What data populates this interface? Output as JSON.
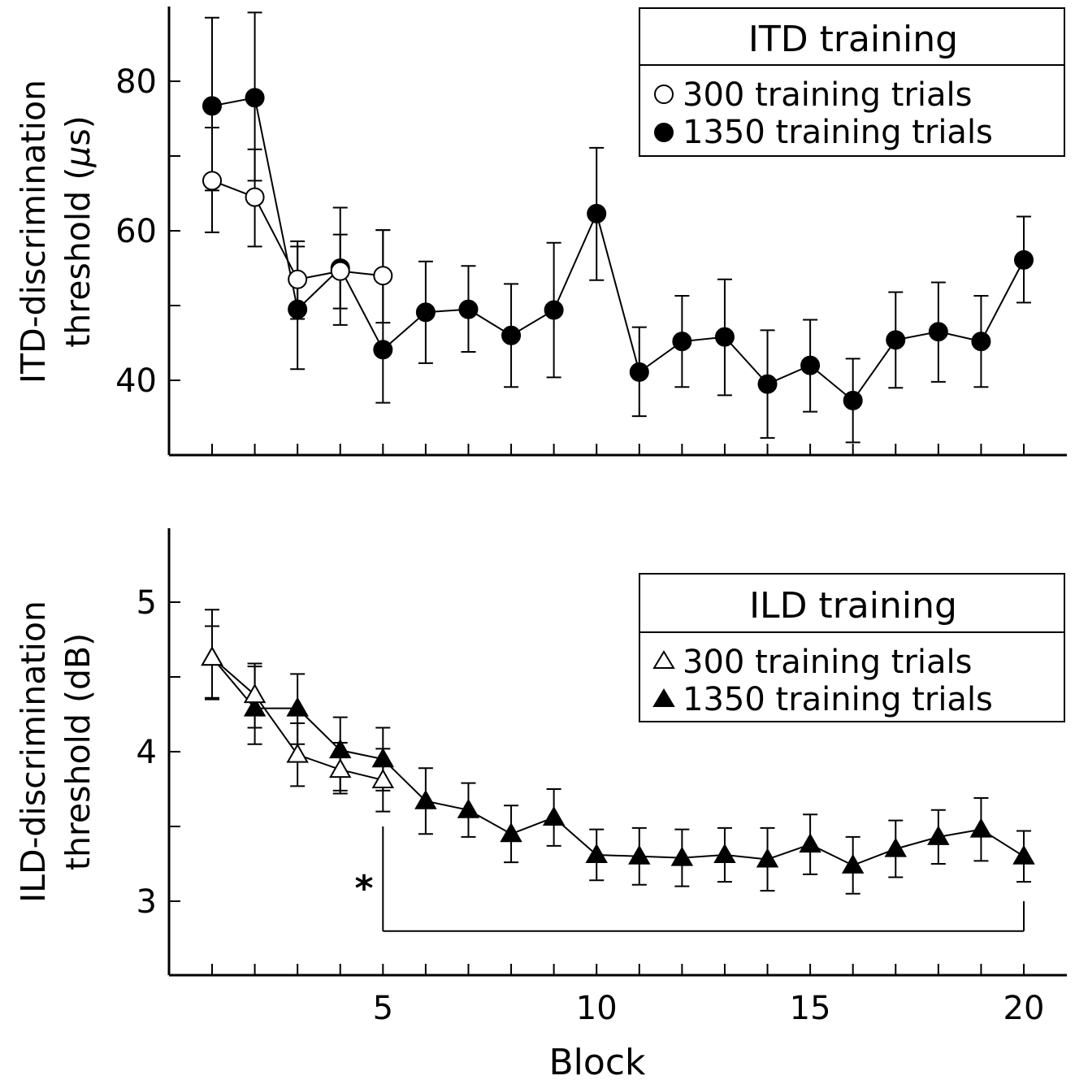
{
  "chart_data": [
    {
      "type": "line",
      "ylabel_line1": "ITD-discrimination",
      "ylabel_line2": "threshold (",
      "ylabel_mu": "μ",
      "ylabel_end": "s)",
      "xlabel": "",
      "ylim": [
        30,
        90
      ],
      "xlim": [
        0,
        21
      ],
      "yticks": [
        40,
        50,
        60,
        70,
        80
      ],
      "yticklabels": [
        "40",
        "",
        "60",
        "",
        "80"
      ],
      "grid": false,
      "legend": {
        "title": "ITD training",
        "placement": "top-right",
        "entries": [
          {
            "marker": "open-circle",
            "label": "300 training trials"
          },
          {
            "marker": "filled-circle",
            "label": "1350 training trials"
          }
        ]
      },
      "series": [
        {
          "name": "300 training trials",
          "marker": "open-circle",
          "x": [
            1,
            2,
            3,
            4,
            5
          ],
          "y": [
            66.7,
            64.5,
            53.5,
            54.6,
            54.0
          ],
          "err_low": [
            59.8,
            57.9,
            48.2,
            47.4,
            47.7
          ],
          "err_high": [
            73.8,
            70.9,
            57.9,
            59.5,
            60.1
          ]
        },
        {
          "name": "1350 training trials",
          "marker": "filled-circle",
          "x": [
            1,
            2,
            3,
            4,
            5,
            6,
            7,
            8,
            9,
            10,
            11,
            12,
            13,
            14,
            15,
            16,
            17,
            18,
            19,
            20
          ],
          "y": [
            76.7,
            77.8,
            49.5,
            55.0,
            44.1,
            49.1,
            49.5,
            46.0,
            49.4,
            62.3,
            41.1,
            45.2,
            45.8,
            39.5,
            42.0,
            37.3,
            45.4,
            46.5,
            45.2,
            56.1
          ],
          "err_low": [
            65.4,
            66.7,
            41.5,
            49.6,
            37.0,
            42.3,
            43.8,
            39.1,
            40.4,
            53.4,
            35.2,
            39.1,
            38.0,
            32.3,
            35.8,
            31.7,
            39.0,
            39.8,
            39.1,
            50.4
          ],
          "err_high": [
            88.5,
            89.2,
            58.6,
            63.1,
            60.1,
            55.9,
            55.3,
            52.9,
            58.4,
            71.1,
            47.1,
            51.3,
            53.5,
            46.7,
            48.1,
            42.9,
            51.8,
            53.1,
            51.3,
            61.9
          ]
        }
      ]
    },
    {
      "type": "line",
      "ylabel_line1": "ILD-discrimination",
      "ylabel_line2": "threshold (dB)",
      "xlabel": "Block",
      "ylim": [
        2.5,
        5.5
      ],
      "xlim": [
        0,
        21
      ],
      "yticks": [
        3,
        3.5,
        4,
        4.5,
        5
      ],
      "yticklabels": [
        "3",
        "",
        "4",
        "",
        "5"
      ],
      "xticks": [
        1,
        2,
        3,
        4,
        5,
        6,
        7,
        8,
        9,
        10,
        11,
        12,
        13,
        14,
        15,
        16,
        17,
        18,
        19,
        20
      ],
      "xticklabels": [
        "",
        "",
        "",
        "",
        "5",
        "",
        "",
        "",
        "",
        "10",
        "",
        "",
        "",
        "",
        "15",
        "",
        "",
        "",
        "",
        "20"
      ],
      "grid": false,
      "legend": {
        "title": "ILD training",
        "placement": "right",
        "entries": [
          {
            "marker": "open-triangle",
            "label": "300 training trials"
          },
          {
            "marker": "filled-triangle",
            "label": "1350 training trials"
          }
        ]
      },
      "annotation": {
        "text": "*",
        "bracket_from_block": 5,
        "bracket_to_block": 20,
        "bracket_level": 2.8,
        "bracket_top": 3.5
      },
      "series": [
        {
          "name": "300 training trials",
          "marker": "open-triangle",
          "x": [
            1,
            2,
            3,
            4,
            5
          ],
          "y": [
            4.63,
            4.38,
            3.98,
            3.88,
            3.81
          ],
          "err_low": [
            4.36,
            4.16,
            3.77,
            3.74,
            3.6
          ],
          "err_high": [
            4.84,
            4.57,
            4.19,
            4.06,
            4.02
          ]
        },
        {
          "name": "1350 training trials",
          "marker": "filled-triangle",
          "x": [
            1,
            2,
            3,
            4,
            5,
            6,
            7,
            8,
            9,
            10,
            11,
            12,
            13,
            14,
            15,
            16,
            17,
            18,
            19,
            20
          ],
          "y": [
            4.63,
            4.29,
            4.29,
            4.01,
            3.95,
            3.67,
            3.61,
            3.45,
            3.56,
            3.31,
            3.3,
            3.29,
            3.31,
            3.28,
            3.38,
            3.24,
            3.35,
            3.43,
            3.48,
            3.3
          ],
          "err_low": [
            4.35,
            4.05,
            4.05,
            3.72,
            3.74,
            3.45,
            3.43,
            3.26,
            3.37,
            3.14,
            3.11,
            3.1,
            3.13,
            3.07,
            3.18,
            3.05,
            3.16,
            3.25,
            3.27,
            3.13
          ],
          "err_high": [
            4.95,
            4.59,
            4.52,
            4.23,
            4.16,
            3.89,
            3.79,
            3.64,
            3.75,
            3.48,
            3.49,
            3.48,
            3.49,
            3.49,
            3.58,
            3.43,
            3.54,
            3.61,
            3.69,
            3.47
          ]
        }
      ]
    }
  ]
}
